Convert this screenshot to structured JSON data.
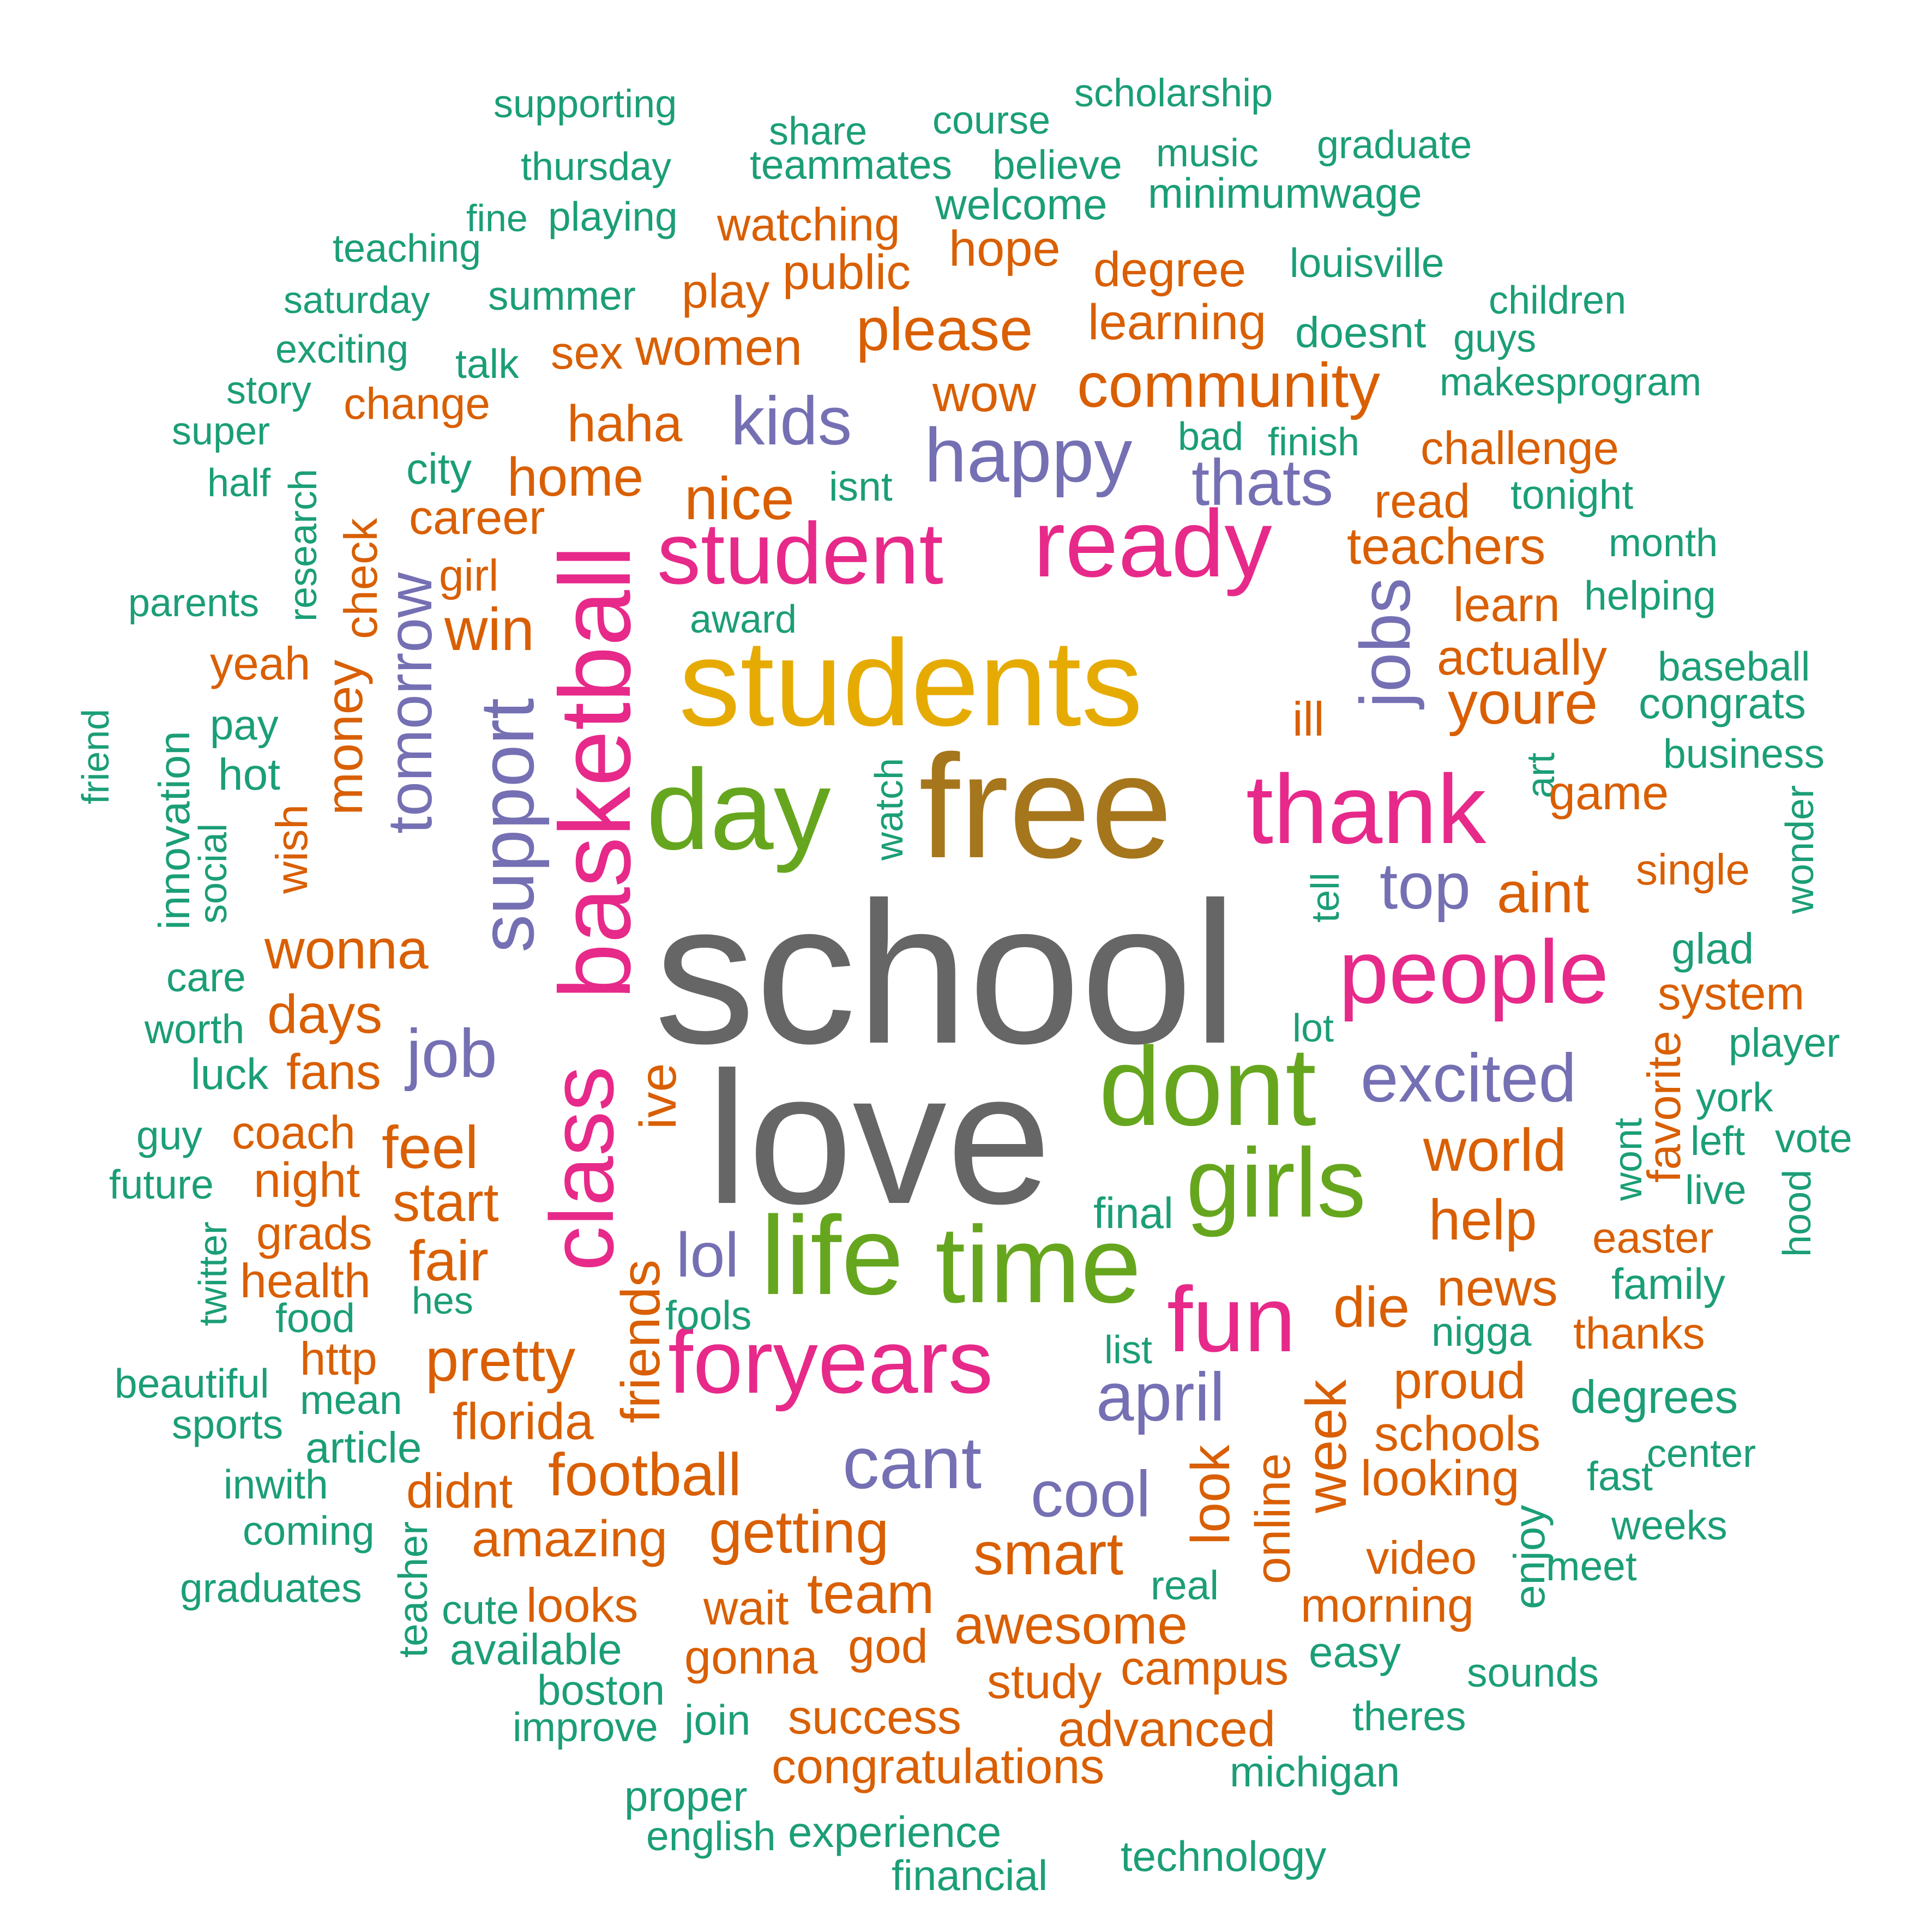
{
  "colors": {
    "gray": "#666666",
    "brown": "#A6761D",
    "gold": "#E6AB02",
    "green": "#66A61E",
    "pink": "#E7298A",
    "purple": "#7570B3",
    "orange": "#D95F02",
    "teal": "#1B9E77"
  },
  "words": [
    {
      "text": "school",
      "color": "gray",
      "size": 10
    },
    {
      "text": "love",
      "color": "gray",
      "size": 9.5
    },
    {
      "text": "free",
      "color": "brown",
      "size": 8
    },
    {
      "text": "students",
      "color": "gold",
      "size": 7
    },
    {
      "text": "day",
      "color": "green",
      "size": 6
    },
    {
      "text": "dont",
      "color": "green",
      "size": 6
    },
    {
      "text": "life",
      "color": "green",
      "size": 6
    },
    {
      "text": "time",
      "color": "green",
      "size": 6
    },
    {
      "text": "girls",
      "color": "green",
      "size": 6
    },
    {
      "text": "ready",
      "color": "pink",
      "size": 5.5
    },
    {
      "text": "student",
      "color": "pink",
      "size": 5
    },
    {
      "text": "thank",
      "color": "pink",
      "size": 5.5
    },
    {
      "text": "people",
      "color": "pink",
      "size": 5
    },
    {
      "text": "basketball",
      "color": "pink",
      "size": 5
    },
    {
      "text": "class",
      "color": "pink",
      "size": 5
    },
    {
      "text": "foryears",
      "color": "pink",
      "size": 5
    },
    {
      "text": "fun",
      "color": "pink",
      "size": 5
    },
    {
      "text": "happy",
      "color": "purple",
      "size": 4.5
    },
    {
      "text": "support",
      "color": "purple",
      "size": 4.5
    },
    {
      "text": "jobs",
      "color": "purple",
      "size": 4
    },
    {
      "text": "excited",
      "color": "purple",
      "size": 4
    },
    {
      "text": "cant",
      "color": "purple",
      "size": 4
    },
    {
      "text": "april",
      "color": "purple",
      "size": 4
    },
    {
      "text": "cool",
      "color": "purple",
      "size": 4
    },
    {
      "text": "top",
      "color": "purple",
      "size": 4
    },
    {
      "text": "job",
      "color": "purple",
      "size": 4
    },
    {
      "text": "kids",
      "color": "purple",
      "size": 4
    },
    {
      "text": "thats",
      "color": "purple",
      "size": 4
    },
    {
      "text": "lol",
      "color": "purple",
      "size": 4
    },
    {
      "text": "tomorrow",
      "color": "purple",
      "size": 3.5
    },
    {
      "text": "supporting",
      "color": "teal",
      "size": 2
    },
    {
      "text": "share",
      "color": "teal",
      "size": 2
    },
    {
      "text": "course",
      "color": "teal",
      "size": 2
    },
    {
      "text": "scholarship",
      "color": "teal",
      "size": 2
    },
    {
      "text": "thursday",
      "color": "teal",
      "size": 2
    },
    {
      "text": "teammates",
      "color": "teal",
      "size": 2
    },
    {
      "text": "believe",
      "color": "teal",
      "size": 2
    },
    {
      "text": "music",
      "color": "teal",
      "size": 2
    },
    {
      "text": "graduate",
      "color": "teal",
      "size": 2
    },
    {
      "text": "fine",
      "color": "teal",
      "size": 2
    },
    {
      "text": "playing",
      "color": "teal",
      "size": 2
    },
    {
      "text": "watching",
      "color": "orange",
      "size": 2.5
    },
    {
      "text": "welcome",
      "color": "teal",
      "size": 2
    },
    {
      "text": "minimumwage",
      "color": "teal",
      "size": 2
    },
    {
      "text": "teaching",
      "color": "teal",
      "size": 2
    },
    {
      "text": "hope",
      "color": "orange",
      "size": 2.5
    },
    {
      "text": "public",
      "color": "orange",
      "size": 2.5
    },
    {
      "text": "degree",
      "color": "orange",
      "size": 2.5
    },
    {
      "text": "louisville",
      "color": "teal",
      "size": 2
    },
    {
      "text": "saturday",
      "color": "teal",
      "size": 2
    },
    {
      "text": "summer",
      "color": "teal",
      "size": 2
    },
    {
      "text": "play",
      "color": "orange",
      "size": 2.5
    },
    {
      "text": "please",
      "color": "orange",
      "size": 3
    },
    {
      "text": "learning",
      "color": "orange",
      "size": 2.5
    },
    {
      "text": "children",
      "color": "teal",
      "size": 2
    },
    {
      "text": "exciting",
      "color": "teal",
      "size": 2
    },
    {
      "text": "talk",
      "color": "teal",
      "size": 2
    },
    {
      "text": "sex",
      "color": "orange",
      "size": 2.5
    },
    {
      "text": "women",
      "color": "orange",
      "size": 2.5
    },
    {
      "text": "doesnt",
      "color": "teal",
      "size": 2
    },
    {
      "text": "guys",
      "color": "teal",
      "size": 2
    },
    {
      "text": "story",
      "color": "teal",
      "size": 2
    },
    {
      "text": "change",
      "color": "orange",
      "size": 2.5
    },
    {
      "text": "wow",
      "color": "orange",
      "size": 2.5
    },
    {
      "text": "community",
      "color": "orange",
      "size": 3
    },
    {
      "text": "makesprogram",
      "color": "teal",
      "size": 2
    },
    {
      "text": "super",
      "color": "teal",
      "size": 2
    },
    {
      "text": "haha",
      "color": "orange",
      "size": 2.5
    },
    {
      "text": "bad",
      "color": "teal",
      "size": 2
    },
    {
      "text": "finish",
      "color": "teal",
      "size": 2
    },
    {
      "text": "challenge",
      "color": "orange",
      "size": 2.5
    },
    {
      "text": "half",
      "color": "teal",
      "size": 2
    },
    {
      "text": "city",
      "color": "teal",
      "size": 2
    },
    {
      "text": "home",
      "color": "orange",
      "size": 3
    },
    {
      "text": "isnt",
      "color": "teal",
      "size": 2
    },
    {
      "text": "nice",
      "color": "orange",
      "size": 3
    },
    {
      "text": "read",
      "color": "orange",
      "size": 2.5
    },
    {
      "text": "tonight",
      "color": "teal",
      "size": 2
    },
    {
      "text": "research",
      "color": "teal",
      "size": 2
    },
    {
      "text": "career",
      "color": "orange",
      "size": 2.5
    },
    {
      "text": "teachers",
      "color": "orange",
      "size": 2.5
    },
    {
      "text": "month",
      "color": "teal",
      "size": 2
    },
    {
      "text": "check",
      "color": "orange",
      "size": 2.5
    },
    {
      "text": "parents",
      "color": "teal",
      "size": 2
    },
    {
      "text": "girl",
      "color": "orange",
      "size": 2.5
    },
    {
      "text": "learn",
      "color": "orange",
      "size": 2.5
    },
    {
      "text": "helping",
      "color": "teal",
      "size": 2
    },
    {
      "text": "award",
      "color": "teal",
      "size": 2
    },
    {
      "text": "win",
      "color": "orange",
      "size": 3
    },
    {
      "text": "yeah",
      "color": "orange",
      "size": 2.5
    },
    {
      "text": "actually",
      "color": "orange",
      "size": 2.5
    },
    {
      "text": "baseball",
      "color": "teal",
      "size": 2
    },
    {
      "text": "congrats",
      "color": "teal",
      "size": 2
    },
    {
      "text": "youre",
      "color": "orange",
      "size": 3
    },
    {
      "text": "money",
      "color": "orange",
      "size": 2.5
    },
    {
      "text": "ill",
      "color": "orange",
      "size": 2.5
    },
    {
      "text": "pay",
      "color": "teal",
      "size": 2
    },
    {
      "text": "business",
      "color": "teal",
      "size": 2
    },
    {
      "text": "friend",
      "color": "teal",
      "size": 2
    },
    {
      "text": "innovation",
      "color": "teal",
      "size": 2
    },
    {
      "text": "hot",
      "color": "teal",
      "size": 2
    },
    {
      "text": "art",
      "color": "teal",
      "size": 2
    },
    {
      "text": "game",
      "color": "orange",
      "size": 2.5
    },
    {
      "text": "watch",
      "color": "teal",
      "size": 2
    },
    {
      "text": "social",
      "color": "teal",
      "size": 2
    },
    {
      "text": "wish",
      "color": "orange",
      "size": 2.5
    },
    {
      "text": "single",
      "color": "orange",
      "size": 2.5
    },
    {
      "text": "wonder",
      "color": "teal",
      "size": 2
    },
    {
      "text": "aint",
      "color": "orange",
      "size": 3
    },
    {
      "text": "tell",
      "color": "teal",
      "size": 2
    },
    {
      "text": "wonna",
      "color": "orange",
      "size": 3
    },
    {
      "text": "glad",
      "color": "teal",
      "size": 2
    },
    {
      "text": "care",
      "color": "teal",
      "size": 2
    },
    {
      "text": "system",
      "color": "orange",
      "size": 2.5
    },
    {
      "text": "days",
      "color": "orange",
      "size": 2.5
    },
    {
      "text": "worth",
      "color": "teal",
      "size": 2
    },
    {
      "text": "lot",
      "color": "teal",
      "size": 2
    },
    {
      "text": "player",
      "color": "teal",
      "size": 2
    },
    {
      "text": "luck",
      "color": "teal",
      "size": 2
    },
    {
      "text": "fans",
      "color": "orange",
      "size": 2.5
    },
    {
      "text": "favorite",
      "color": "orange",
      "size": 2.5
    },
    {
      "text": "york",
      "color": "teal",
      "size": 2
    },
    {
      "text": "ive",
      "color": "orange",
      "size": 3
    },
    {
      "text": "guy",
      "color": "teal",
      "size": 2
    },
    {
      "text": "coach",
      "color": "orange",
      "size": 2.5
    },
    {
      "text": "feel",
      "color": "orange",
      "size": 3
    },
    {
      "text": "wont",
      "color": "teal",
      "size": 2
    },
    {
      "text": "left",
      "color": "teal",
      "size": 2
    },
    {
      "text": "vote",
      "color": "teal",
      "size": 2
    },
    {
      "text": "world",
      "color": "orange",
      "size": 3
    },
    {
      "text": "future",
      "color": "teal",
      "size": 2
    },
    {
      "text": "night",
      "color": "orange",
      "size": 2.5
    },
    {
      "text": "start",
      "color": "orange",
      "size": 3
    },
    {
      "text": "live",
      "color": "teal",
      "size": 2
    },
    {
      "text": "hood",
      "color": "teal",
      "size": 2
    },
    {
      "text": "final",
      "color": "teal",
      "size": 2
    },
    {
      "text": "help",
      "color": "orange",
      "size": 3
    },
    {
      "text": "grads",
      "color": "orange",
      "size": 2.5
    },
    {
      "text": "easter",
      "color": "orange",
      "size": 2.5
    },
    {
      "text": "twitter",
      "color": "teal",
      "size": 2
    },
    {
      "text": "fair",
      "color": "orange",
      "size": 3
    },
    {
      "text": "health",
      "color": "orange",
      "size": 2.5
    },
    {
      "text": "friends",
      "color": "orange",
      "size": 3
    },
    {
      "text": "hes",
      "color": "teal",
      "size": 2
    },
    {
      "text": "news",
      "color": "orange",
      "size": 2.5
    },
    {
      "text": "family",
      "color": "teal",
      "size": 2
    },
    {
      "text": "food",
      "color": "teal",
      "size": 2
    },
    {
      "text": "fools",
      "color": "teal",
      "size": 2
    },
    {
      "text": "die",
      "color": "orange",
      "size": 3
    },
    {
      "text": "nigga",
      "color": "teal",
      "size": 2
    },
    {
      "text": "thanks",
      "color": "orange",
      "size": 2.5
    },
    {
      "text": "http",
      "color": "orange",
      "size": 2.5
    },
    {
      "text": "pretty",
      "color": "orange",
      "size": 3
    },
    {
      "text": "list",
      "color": "teal",
      "size": 2
    },
    {
      "text": "beautiful",
      "color": "teal",
      "size": 2
    },
    {
      "text": "mean",
      "color": "teal",
      "size": 2
    },
    {
      "text": "proud",
      "color": "orange",
      "size": 2.5
    },
    {
      "text": "degrees",
      "color": "teal",
      "size": 2
    },
    {
      "text": "sports",
      "color": "teal",
      "size": 2
    },
    {
      "text": "florida",
      "color": "orange",
      "size": 2.5
    },
    {
      "text": "week",
      "color": "orange",
      "size": 3
    },
    {
      "text": "schools",
      "color": "orange",
      "size": 2.5
    },
    {
      "text": "article",
      "color": "teal",
      "size": 2
    },
    {
      "text": "center",
      "color": "teal",
      "size": 2
    },
    {
      "text": "football",
      "color": "orange",
      "size": 3
    },
    {
      "text": "looking",
      "color": "orange",
      "size": 2.5
    },
    {
      "text": "fast",
      "color": "teal",
      "size": 2
    },
    {
      "text": "inwith",
      "color": "teal",
      "size": 2
    },
    {
      "text": "didnt",
      "color": "orange",
      "size": 2.5
    },
    {
      "text": "look",
      "color": "orange",
      "size": 3
    },
    {
      "text": "online",
      "color": "orange",
      "size": 2.5
    },
    {
      "text": "weeks",
      "color": "teal",
      "size": 2
    },
    {
      "text": "coming",
      "color": "teal",
      "size": 2
    },
    {
      "text": "amazing",
      "color": "orange",
      "size": 2.5
    },
    {
      "text": "getting",
      "color": "orange",
      "size": 3
    },
    {
      "text": "smart",
      "color": "orange",
      "size": 3
    },
    {
      "text": "enjoy",
      "color": "teal",
      "size": 2
    },
    {
      "text": "video",
      "color": "orange",
      "size": 2.5
    },
    {
      "text": "meet",
      "color": "teal",
      "size": 2
    },
    {
      "text": "graduates",
      "color": "teal",
      "size": 2
    },
    {
      "text": "teacher",
      "color": "teal",
      "size": 2
    },
    {
      "text": "cute",
      "color": "teal",
      "size": 2
    },
    {
      "text": "looks",
      "color": "orange",
      "size": 2.5
    },
    {
      "text": "wait",
      "color": "orange",
      "size": 2.5
    },
    {
      "text": "team",
      "color": "orange",
      "size": 3
    },
    {
      "text": "real",
      "color": "teal",
      "size": 2
    },
    {
      "text": "morning",
      "color": "orange",
      "size": 2.5
    },
    {
      "text": "awesome",
      "color": "orange",
      "size": 3
    },
    {
      "text": "available",
      "color": "teal",
      "size": 2
    },
    {
      "text": "god",
      "color": "orange",
      "size": 2.5
    },
    {
      "text": "gonna",
      "color": "orange",
      "size": 2.5
    },
    {
      "text": "easy",
      "color": "teal",
      "size": 2
    },
    {
      "text": "campus",
      "color": "orange",
      "size": 2.5
    },
    {
      "text": "sounds",
      "color": "teal",
      "size": 2
    },
    {
      "text": "study",
      "color": "orange",
      "size": 2.5
    },
    {
      "text": "boston",
      "color": "teal",
      "size": 2
    },
    {
      "text": "theres",
      "color": "teal",
      "size": 2
    },
    {
      "text": "improve",
      "color": "teal",
      "size": 2
    },
    {
      "text": "join",
      "color": "teal",
      "size": 2
    },
    {
      "text": "success",
      "color": "orange",
      "size": 2.5
    },
    {
      "text": "advanced",
      "color": "orange",
      "size": 2.5
    },
    {
      "text": "congratulations",
      "color": "orange",
      "size": 2.5
    },
    {
      "text": "michigan",
      "color": "teal",
      "size": 2
    },
    {
      "text": "proper",
      "color": "teal",
      "size": 2
    },
    {
      "text": "english",
      "color": "teal",
      "size": 2
    },
    {
      "text": "experience",
      "color": "teal",
      "size": 2
    },
    {
      "text": "technology",
      "color": "teal",
      "size": 2
    },
    {
      "text": "financial",
      "color": "teal",
      "size": 2
    }
  ]
}
